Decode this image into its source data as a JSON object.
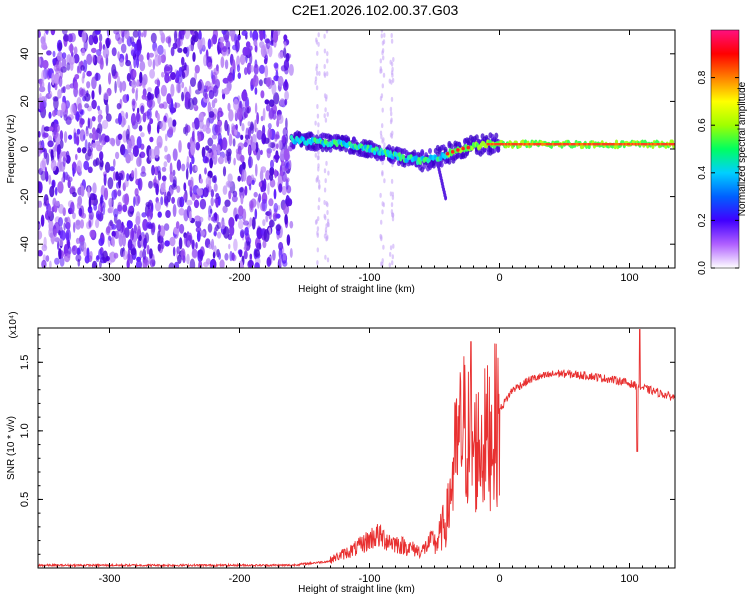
{
  "title": "C2E1.2026.102.00.37.G03",
  "chart_data": [
    {
      "type": "heatmap",
      "xlabel": "Height of straight line (km)",
      "ylabel": "Frequency (Hz)",
      "xlim": [
        -355,
        135
      ],
      "ylim": [
        -50,
        50
      ],
      "xticks": [
        -300,
        -200,
        -100,
        0,
        100
      ],
      "yticks": [
        -40,
        -20,
        0,
        20,
        40
      ],
      "colorbar": {
        "label": "Normalized spectral amplitude",
        "range": [
          0.0,
          1.0
        ],
        "ticks": [
          0.0,
          0.2,
          0.4,
          0.6,
          0.8
        ],
        "tick_labels": [
          "0.0",
          "0.2",
          "0.4",
          "0.6",
          "0.8"
        ],
        "colors": [
          "#ffffff",
          "#b060ff",
          "#4000ff",
          "#0060ff",
          "#00d0ff",
          "#00ff60",
          "#a0ff00",
          "#ffff00",
          "#ff8000",
          "#ff0000",
          "#ff1080"
        ]
      },
      "noise_region_x": [
        -355,
        -160
      ],
      "signal_track": [
        {
          "x": -160,
          "f": 4
        },
        {
          "x": -140,
          "f": 3
        },
        {
          "x": -120,
          "f": 2
        },
        {
          "x": -100,
          "f": 0
        },
        {
          "x": -80,
          "f": -3
        },
        {
          "x": -60,
          "f": -5
        },
        {
          "x": -45,
          "f": -3
        },
        {
          "x": -30,
          "f": 0
        },
        {
          "x": -10,
          "f": 2
        },
        {
          "x": 20,
          "f": 2
        },
        {
          "x": 60,
          "f": 2
        },
        {
          "x": 100,
          "f": 2
        },
        {
          "x": 135,
          "f": 2
        }
      ]
    },
    {
      "type": "line",
      "xlabel": "Height of straight line (km)",
      "ylabel": "SNR (10 * v/v)",
      "y_multiplier": "(x10⁴)",
      "xlim": [
        -355,
        135
      ],
      "ylim": [
        0.0,
        1.75
      ],
      "xticks": [
        -300,
        -200,
        -100,
        0,
        100
      ],
      "yticks": [
        0.5,
        1.0,
        1.5
      ],
      "ytick_labels": [
        "0.5",
        "1.0",
        "1.5"
      ],
      "line_color": "#e83030",
      "series_envelope": [
        {
          "x": -355,
          "y": 0.02
        },
        {
          "x": -160,
          "y": 0.02
        },
        {
          "x": -130,
          "y": 0.05
        },
        {
          "x": -110,
          "y": 0.12
        },
        {
          "x": -95,
          "y": 0.2
        },
        {
          "x": -80,
          "y": 0.15
        },
        {
          "x": -60,
          "y": 0.1
        },
        {
          "x": -48,
          "y": 0.2
        },
        {
          "x": -40,
          "y": 0.4
        },
        {
          "x": -35,
          "y": 0.8
        },
        {
          "x": -28,
          "y": 1.1
        },
        {
          "x": -20,
          "y": 0.9
        },
        {
          "x": -10,
          "y": 1.0
        },
        {
          "x": 0,
          "y": 1.15
        },
        {
          "x": 10,
          "y": 1.3
        },
        {
          "x": 25,
          "y": 1.38
        },
        {
          "x": 45,
          "y": 1.42
        },
        {
          "x": 70,
          "y": 1.4
        },
        {
          "x": 95,
          "y": 1.36
        },
        {
          "x": 115,
          "y": 1.3
        },
        {
          "x": 135,
          "y": 1.24
        }
      ]
    }
  ]
}
